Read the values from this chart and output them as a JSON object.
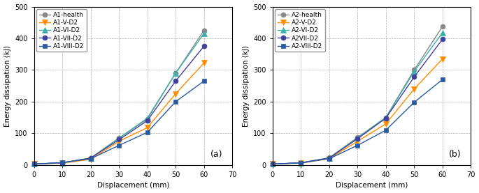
{
  "panel_a": {
    "label": "(a)",
    "xlabel": "Displacement (mm)",
    "ylabel": "Energy dissipation (kJ)",
    "xlim": [
      0,
      70
    ],
    "ylim": [
      0,
      500
    ],
    "xticks": [
      0,
      10,
      20,
      30,
      40,
      50,
      60,
      70
    ],
    "yticks": [
      0,
      100,
      200,
      300,
      400,
      500
    ],
    "series": [
      {
        "label": "A1-health",
        "x": [
          0,
          10,
          20,
          30,
          40,
          50,
          60
        ],
        "y": [
          3,
          7,
          22,
          85,
          145,
          290,
          425
        ],
        "color": "#888888",
        "marker": "o",
        "marker_size": 5
      },
      {
        "label": "A1-V-D2",
        "x": [
          0,
          10,
          20,
          30,
          40,
          50,
          60
        ],
        "y": [
          3,
          6,
          18,
          75,
          118,
          225,
          322
        ],
        "color": "#FF8C00",
        "marker": "v",
        "marker_size": 6
      },
      {
        "label": "A1-VI-D2",
        "x": [
          0,
          10,
          20,
          30,
          40,
          50,
          60
        ],
        "y": [
          3,
          7,
          22,
          85,
          148,
          290,
          415
        ],
        "color": "#3CB0A8",
        "marker": "^",
        "marker_size": 6
      },
      {
        "label": "A1-VII-D2",
        "x": [
          0,
          10,
          20,
          30,
          40,
          50,
          60
        ],
        "y": [
          3,
          7,
          22,
          80,
          140,
          265,
          375
        ],
        "color": "#4040A0",
        "marker": "o",
        "marker_size": 5
      },
      {
        "label": "A1-VIII-D2",
        "x": [
          0,
          10,
          20,
          30,
          40,
          50,
          60
        ],
        "y": [
          3,
          8,
          20,
          62,
          103,
          200,
          265
        ],
        "color": "#2B5AA0",
        "marker": "s",
        "marker_size": 5
      }
    ]
  },
  "panel_b": {
    "label": "(b)",
    "xlabel": "Displacement (mm)",
    "ylabel": "Energy dissipation (kJ)",
    "xlim": [
      0,
      70
    ],
    "ylim": [
      0,
      500
    ],
    "xticks": [
      0,
      10,
      20,
      30,
      40,
      50,
      60,
      70
    ],
    "yticks": [
      0,
      100,
      200,
      300,
      400,
      500
    ],
    "series": [
      {
        "label": "A2-health",
        "x": [
          0,
          10,
          20,
          30,
          40,
          50,
          60
        ],
        "y": [
          3,
          7,
          23,
          87,
          150,
          300,
          437
        ],
        "color": "#888888",
        "marker": "o",
        "marker_size": 5
      },
      {
        "label": "A2-V-D2",
        "x": [
          0,
          10,
          20,
          30,
          40,
          50,
          60
        ],
        "y": [
          3,
          6,
          20,
          75,
          130,
          240,
          335
        ],
        "color": "#FF8C00",
        "marker": "v",
        "marker_size": 6
      },
      {
        "label": "A2-VI-D2",
        "x": [
          0,
          10,
          20,
          30,
          40,
          50,
          60
        ],
        "y": [
          3,
          7,
          22,
          85,
          150,
          295,
          418
        ],
        "color": "#3CB0A8",
        "marker": "^",
        "marker_size": 6
      },
      {
        "label": "A2VII-D2",
        "x": [
          0,
          10,
          20,
          30,
          40,
          50,
          60
        ],
        "y": [
          3,
          7,
          22,
          83,
          148,
          278,
          397
        ],
        "color": "#4040A0",
        "marker": "o",
        "marker_size": 5
      },
      {
        "label": "A2-VIII-D2",
        "x": [
          0,
          10,
          20,
          30,
          40,
          50,
          60
        ],
        "y": [
          3,
          7,
          20,
          62,
          110,
          198,
          270
        ],
        "color": "#2B5AA0",
        "marker": "s",
        "marker_size": 5
      }
    ]
  }
}
